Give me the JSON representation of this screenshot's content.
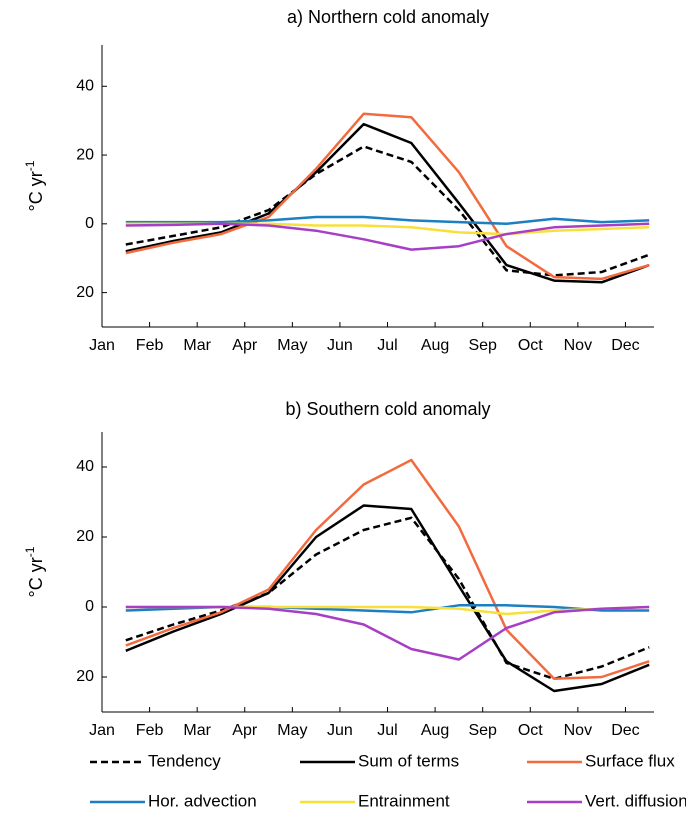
{
  "chart_data": [
    {
      "type": "line",
      "title": "a) Northern cold anomaly",
      "ylabel": "°C yr",
      "ylabel_superscript": "-1",
      "x": [
        0.5,
        1.5,
        2.5,
        3.5,
        4.5,
        5.5,
        6.5,
        7.5,
        8.5,
        9.5,
        10.5,
        11.5
      ],
      "xlim": [
        0,
        11.6
      ],
      "xticks": [
        {
          "value": 0,
          "label": "Jan"
        },
        {
          "value": 1,
          "label": "Feb"
        },
        {
          "value": 2,
          "label": "Mar"
        },
        {
          "value": 3,
          "label": "Apr"
        },
        {
          "value": 4,
          "label": "May"
        },
        {
          "value": 5,
          "label": "Jun"
        },
        {
          "value": 6,
          "label": "Jul"
        },
        {
          "value": 7,
          "label": "Aug"
        },
        {
          "value": 8,
          "label": "Sep"
        },
        {
          "value": 9,
          "label": "Oct"
        },
        {
          "value": 10,
          "label": "Nov"
        },
        {
          "value": 11,
          "label": "Dec"
        }
      ],
      "ylim": [
        -30,
        52
      ],
      "yticks": [
        {
          "value": -20,
          "label": "20"
        },
        0,
        20,
        40
      ],
      "series": [
        {
          "name": "Tendency",
          "color": "#000000",
          "dashed": true,
          "values": [
            -6,
            -3.5,
            -1,
            4,
            14.5,
            22.5,
            18,
            4,
            -13.5,
            -15,
            -14,
            -9
          ]
        },
        {
          "name": "Sum of terms",
          "color": "#000000",
          "values": [
            -8,
            -5,
            -2.5,
            3,
            15,
            29,
            23.5,
            6,
            -12,
            -16.5,
            -17,
            -12
          ]
        },
        {
          "name": "Surface flux",
          "color": "#f26b3f",
          "values": [
            -8.5,
            -5.5,
            -3,
            2,
            16,
            32,
            31,
            15,
            -6.5,
            -15.5,
            -16,
            -12
          ]
        },
        {
          "name": "Hor. advection",
          "color": "#1b7fc0",
          "values": [
            0.5,
            0.5,
            0.5,
            1,
            2,
            2,
            1,
            0.5,
            0,
            1.5,
            0.5,
            1
          ]
        },
        {
          "name": "Entrainment",
          "color": "#f7e03c",
          "values": [
            0,
            0,
            0,
            0,
            -0.5,
            -0.5,
            -1,
            -2.5,
            -3,
            -2,
            -1.5,
            -1
          ]
        },
        {
          "name": "Vert. diffusion",
          "color": "#a73fc5",
          "values": [
            -0.5,
            -0.3,
            0,
            -0.5,
            -2,
            -4.5,
            -7.5,
            -6.5,
            -3,
            -1,
            -0.5,
            0
          ]
        }
      ]
    },
    {
      "type": "line",
      "title": "b) Southern cold anomaly",
      "ylabel": "°C yr",
      "ylabel_superscript": "-1",
      "x": [
        0.5,
        1.5,
        2.5,
        3.5,
        4.5,
        5.5,
        6.5,
        7.5,
        8.5,
        9.5,
        10.5,
        11.5
      ],
      "xlim": [
        0,
        11.6
      ],
      "xticks": [
        {
          "value": 0,
          "label": "Jan"
        },
        {
          "value": 1,
          "label": "Feb"
        },
        {
          "value": 2,
          "label": "Mar"
        },
        {
          "value": 3,
          "label": "Apr"
        },
        {
          "value": 4,
          "label": "May"
        },
        {
          "value": 5,
          "label": "Jun"
        },
        {
          "value": 6,
          "label": "Jul"
        },
        {
          "value": 7,
          "label": "Aug"
        },
        {
          "value": 8,
          "label": "Sep"
        },
        {
          "value": 9,
          "label": "Oct"
        },
        {
          "value": 10,
          "label": "Nov"
        },
        {
          "value": 11,
          "label": "Dec"
        }
      ],
      "ylim": [
        -30,
        50
      ],
      "yticks": [
        {
          "value": -20,
          "label": "20"
        },
        0,
        20,
        40
      ],
      "series": [
        {
          "name": "Tendency",
          "color": "#000000",
          "dashed": true,
          "values": [
            -9.5,
            -5,
            -1,
            4,
            15,
            22,
            25.5,
            8,
            -16,
            -20.5,
            -17,
            -11.5
          ]
        },
        {
          "name": "Sum of terms",
          "color": "#000000",
          "values": [
            -12.5,
            -7,
            -2,
            4,
            20,
            29,
            28,
            6,
            -15.5,
            -24,
            -22,
            -16.5
          ]
        },
        {
          "name": "Surface flux",
          "color": "#f26b3f",
          "values": [
            -11,
            -6,
            -1.5,
            5,
            22,
            35,
            42,
            23,
            -6.5,
            -20.5,
            -20,
            -15.5
          ]
        },
        {
          "name": "Hor. advection",
          "color": "#1b7fc0",
          "values": [
            -1,
            -0.5,
            0,
            0,
            -0.5,
            -1,
            -1.5,
            0.5,
            0.5,
            0,
            -1,
            -1
          ]
        },
        {
          "name": "Entrainment",
          "color": "#f7e03c",
          "values": [
            0,
            0,
            0,
            0,
            0,
            0,
            0,
            -0.5,
            -2,
            -1,
            -0.5,
            0
          ]
        },
        {
          "name": "Vert. diffusion",
          "color": "#a73fc5",
          "values": [
            0,
            0,
            0,
            -0.5,
            -2,
            -5,
            -12,
            -15,
            -6,
            -1.5,
            -0.5,
            0
          ]
        }
      ]
    }
  ]
}
